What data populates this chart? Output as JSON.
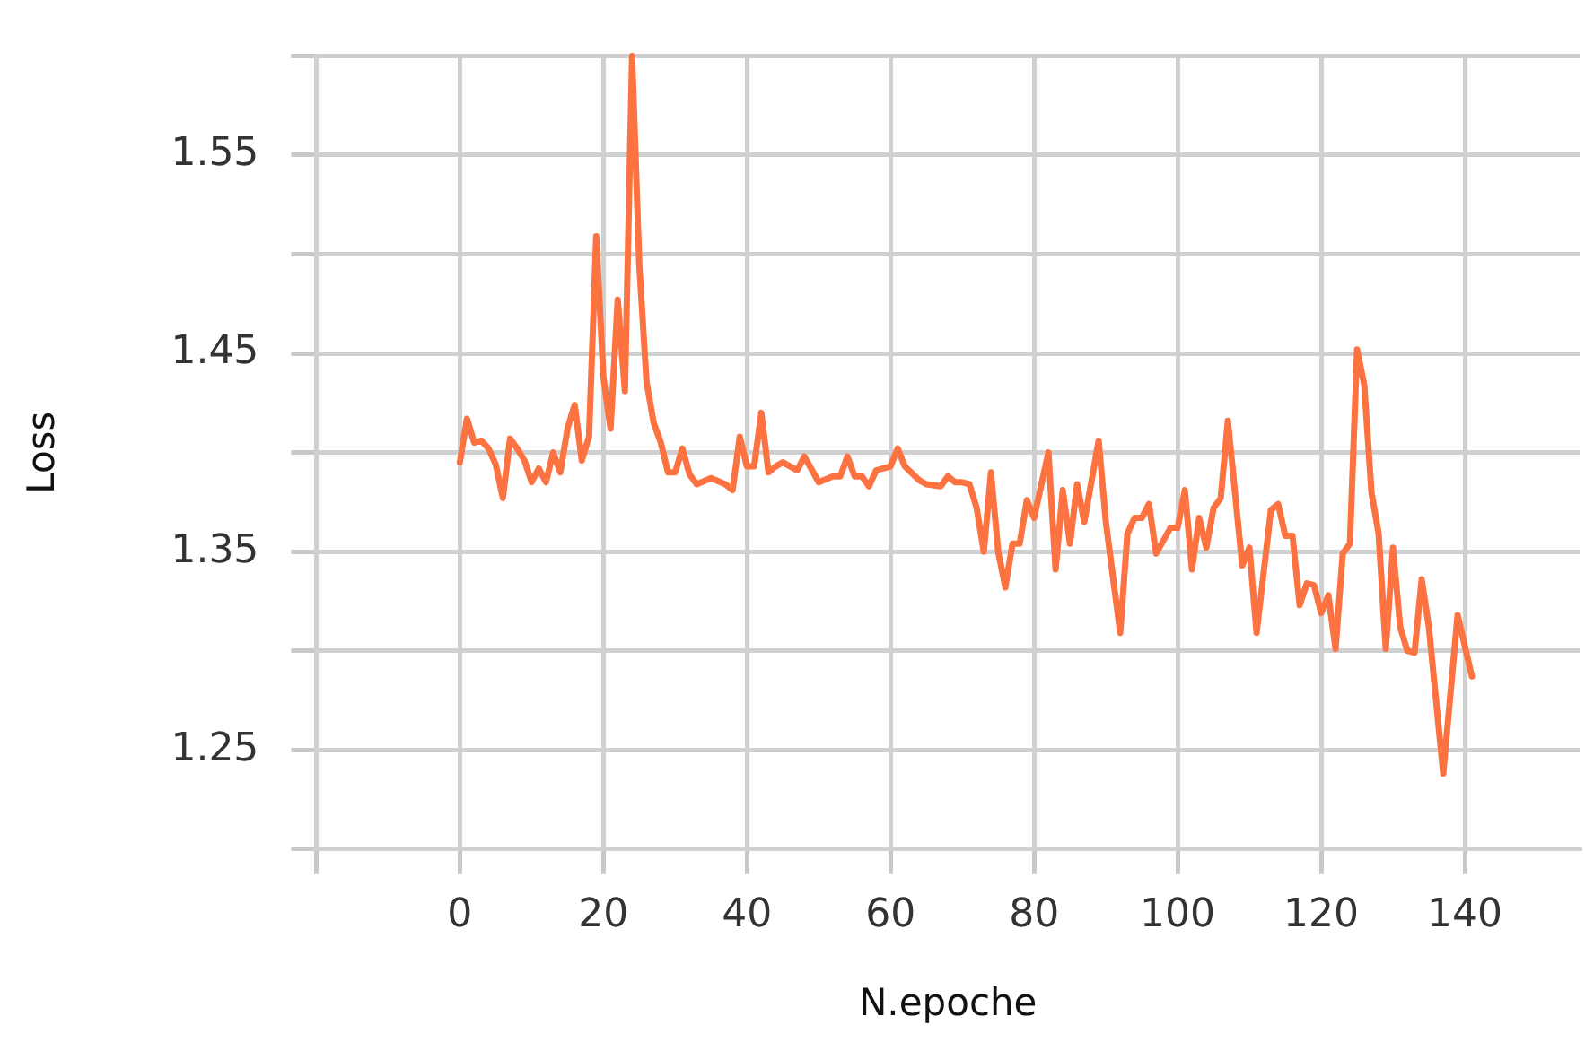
{
  "chart_data": {
    "type": "line",
    "xlabel": "N.epoche",
    "ylabel": "Loss",
    "grid": true,
    "marker": "none",
    "xlim": [
      -20,
      156
    ],
    "ylim": [
      1.2,
      1.6
    ],
    "xticks": [
      {
        "value": -20,
        "label": null
      },
      0,
      20,
      40,
      60,
      80,
      100,
      120,
      140
    ],
    "yticks": [
      {
        "value": 1.2,
        "label": null
      },
      1.25,
      {
        "value": 1.3,
        "label": null
      },
      1.35,
      {
        "value": 1.4,
        "label": null
      },
      1.45,
      {
        "value": 1.5,
        "label": null
      },
      1.55,
      {
        "value": 1.6,
        "label": null
      }
    ],
    "series": [
      {
        "color": "#fc7341",
        "x": [
          0,
          1,
          2,
          3,
          4,
          5,
          6,
          7,
          8,
          9,
          10,
          11,
          12,
          13,
          14,
          15,
          16,
          17,
          18,
          19,
          20,
          21,
          22,
          23,
          24,
          25,
          26,
          27,
          28,
          29,
          30,
          31,
          32,
          33,
          35,
          37,
          38,
          39,
          40,
          41,
          42,
          43,
          44,
          45,
          47,
          48,
          50,
          52,
          53,
          54,
          55,
          56,
          57,
          58,
          60,
          61,
          62,
          64,
          65,
          67,
          68,
          69,
          70,
          71,
          72,
          73,
          74,
          75,
          76,
          77,
          78,
          79,
          80,
          82,
          83,
          84,
          85,
          86,
          87,
          89,
          90,
          92,
          93,
          94,
          95,
          96,
          97,
          99,
          100,
          101,
          102,
          103,
          104,
          105,
          106,
          107,
          109,
          110,
          111,
          113,
          114,
          115,
          116,
          117,
          118,
          119,
          120,
          121,
          122,
          123,
          124,
          125,
          126,
          127,
          128,
          129,
          130,
          131,
          132,
          133,
          134,
          135,
          137,
          139,
          141
        ],
        "values": [
          1.395,
          1.417,
          1.405,
          1.406,
          1.402,
          1.394,
          1.377,
          1.407,
          1.402,
          1.396,
          1.385,
          1.392,
          1.385,
          1.4,
          1.39,
          1.412,
          1.424,
          1.396,
          1.408,
          1.509,
          1.438,
          1.412,
          1.477,
          1.431,
          1.6,
          1.495,
          1.436,
          1.415,
          1.405,
          1.39,
          1.39,
          1.402,
          1.389,
          1.384,
          1.387,
          1.384,
          1.381,
          1.408,
          1.393,
          1.393,
          1.42,
          1.39,
          1.393,
          1.395,
          1.391,
          1.398,
          1.385,
          1.388,
          1.388,
          1.398,
          1.388,
          1.388,
          1.383,
          1.391,
          1.393,
          1.402,
          1.393,
          1.386,
          1.384,
          1.383,
          1.388,
          1.385,
          1.385,
          1.384,
          1.372,
          1.35,
          1.39,
          1.35,
          1.332,
          1.354,
          1.354,
          1.376,
          1.367,
          1.4,
          1.341,
          1.381,
          1.354,
          1.384,
          1.365,
          1.406,
          1.365,
          1.309,
          1.359,
          1.367,
          1.367,
          1.374,
          1.349,
          1.362,
          1.362,
          1.381,
          1.341,
          1.367,
          1.352,
          1.372,
          1.377,
          1.416,
          1.343,
          1.352,
          1.309,
          1.371,
          1.374,
          1.358,
          1.358,
          1.323,
          1.334,
          1.333,
          1.319,
          1.328,
          1.301,
          1.349,
          1.354,
          1.452,
          1.434,
          1.38,
          1.359,
          1.301,
          1.352,
          1.312,
          1.3,
          1.299,
          1.336,
          1.312,
          1.238,
          1.318,
          1.287
        ]
      }
    ]
  }
}
